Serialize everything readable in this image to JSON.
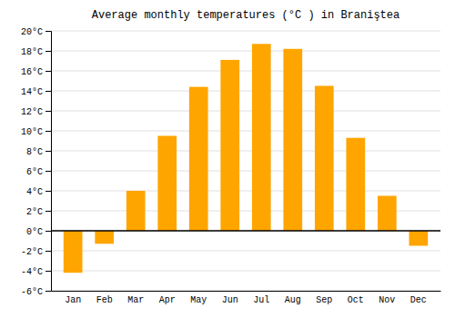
{
  "chart_data": {
    "type": "bar",
    "title": "Average monthly temperatures (°C ) in Braniştea",
    "categories": [
      "Jan",
      "Feb",
      "Mar",
      "Apr",
      "May",
      "Jun",
      "Jul",
      "Aug",
      "Sep",
      "Oct",
      "Nov",
      "Dec"
    ],
    "values": [
      -4.2,
      -1.3,
      4.0,
      9.5,
      14.4,
      17.1,
      18.7,
      18.2,
      14.5,
      9.3,
      3.5,
      -1.5
    ],
    "color": "#FFA500",
    "ylim": [
      -6,
      20
    ],
    "yticks": [
      {
        "value": -6,
        "label": "-6°C"
      },
      {
        "value": -4,
        "label": "-4°C"
      },
      {
        "value": -2,
        "label": "-2°C"
      },
      {
        "value": 0,
        "label": "0°C"
      },
      {
        "value": 2,
        "label": "2°C"
      },
      {
        "value": 4,
        "label": "4°C"
      },
      {
        "value": 6,
        "label": "6°C"
      },
      {
        "value": 8,
        "label": "8°C"
      },
      {
        "value": 10,
        "label": "10°C"
      },
      {
        "value": 12,
        "label": "12°C"
      },
      {
        "value": 14,
        "label": "14°C"
      },
      {
        "value": 16,
        "label": "16°C"
      },
      {
        "value": 18,
        "label": "18°C"
      },
      {
        "value": 20,
        "label": "20°C"
      }
    ],
    "grid": true
  }
}
